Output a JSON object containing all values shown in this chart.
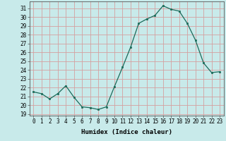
{
  "x": [
    0,
    1,
    2,
    3,
    4,
    5,
    6,
    7,
    8,
    9,
    10,
    11,
    12,
    13,
    14,
    15,
    16,
    17,
    18,
    19,
    20,
    21,
    22,
    23
  ],
  "y": [
    21.5,
    21.3,
    20.7,
    21.3,
    22.2,
    20.9,
    19.8,
    19.7,
    19.5,
    19.8,
    22.1,
    24.3,
    26.6,
    29.3,
    29.8,
    30.2,
    31.3,
    30.9,
    30.7,
    29.3,
    27.4,
    24.8,
    23.7,
    23.8
  ],
  "line_color": "#1a6b5a",
  "marker": "s",
  "marker_size": 2.0,
  "bg_color": "#c8eaea",
  "grid_color": "#d4a0a0",
  "xlabel": "Humidex (Indice chaleur)",
  "ylim": [
    18.8,
    31.8
  ],
  "yticks": [
    19,
    20,
    21,
    22,
    23,
    24,
    25,
    26,
    27,
    28,
    29,
    30,
    31
  ],
  "xlim": [
    -0.5,
    23.5
  ],
  "xticks": [
    0,
    1,
    2,
    3,
    4,
    5,
    6,
    7,
    8,
    9,
    10,
    11,
    12,
    13,
    14,
    15,
    16,
    17,
    18,
    19,
    20,
    21,
    22,
    23
  ],
  "axis_fontsize": 5.5,
  "label_fontsize": 6.5
}
